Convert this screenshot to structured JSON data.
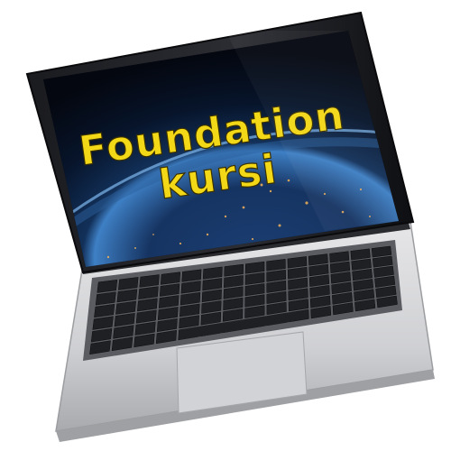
{
  "screen": {
    "title_line1": "Foundation",
    "title_line2": "kursi",
    "text_color": "#f2d817",
    "text_outline": "#3a3000"
  },
  "colors": {
    "bezel": "#141518",
    "screen_dark": "#04070f",
    "earth_glow": "#3e7fc4",
    "aluminum_light": "#e4e4e6",
    "aluminum_dark": "#b7b8bb",
    "keyboard_well": "#55575c",
    "key": "#202124",
    "trackpad": "#cfd0d2"
  }
}
